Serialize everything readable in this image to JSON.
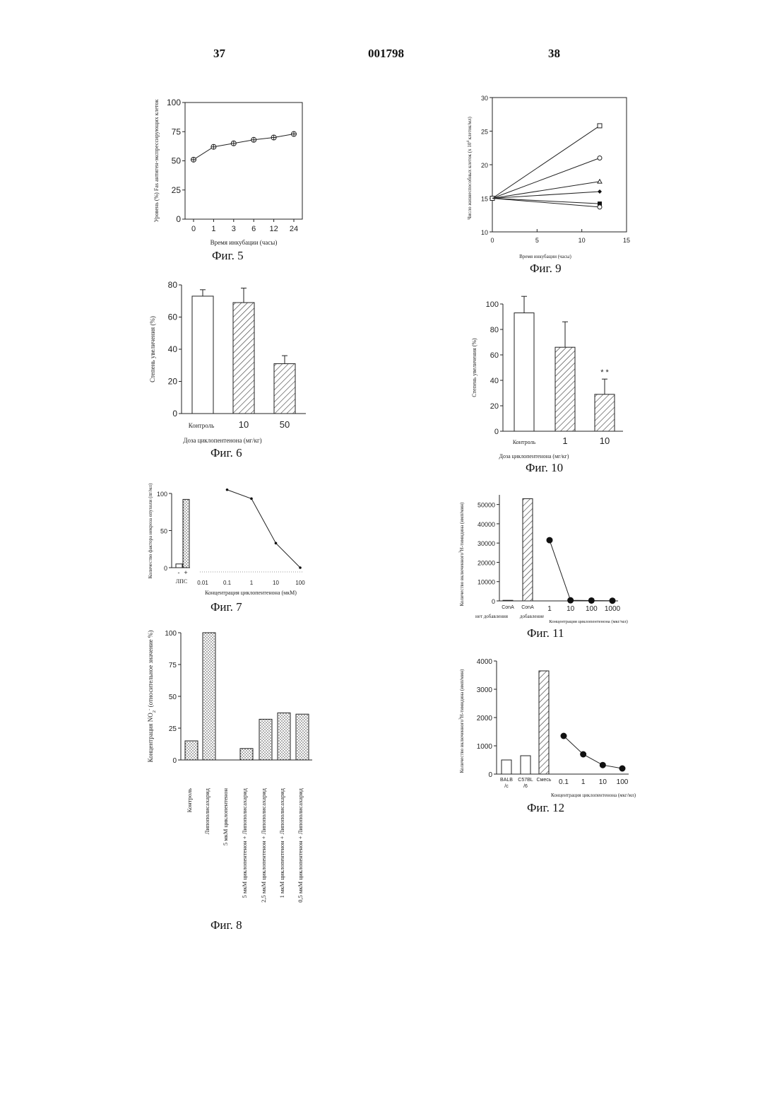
{
  "header": {
    "left_page": "37",
    "doc_number": "001798",
    "right_page": "38"
  },
  "chart_data": [
    {
      "id": "fig5",
      "caption": "Фиг. 5",
      "type": "line",
      "ylabel": "Уровень (%) Fas антиген-экспрессирующих клеток",
      "xlabel": "Время инкубации (часы)",
      "ylim": [
        0,
        100
      ],
      "yticks": [
        0,
        25,
        50,
        75,
        100
      ],
      "categories": [
        "0",
        "1",
        "3",
        "6",
        "12",
        "24"
      ],
      "values": [
        51,
        62,
        65,
        68,
        70,
        73
      ],
      "marker": "circle-cross"
    },
    {
      "id": "fig6",
      "caption": "Фиг. 6",
      "type": "bar",
      "ylabel": "Степень увеличения (%)",
      "xlabel": "Доза циклопентенона (мг/кг)",
      "ylim": [
        0,
        80
      ],
      "yticks": [
        0,
        20,
        40,
        60,
        80
      ],
      "categories": [
        "Контроль",
        "10",
        "50"
      ],
      "values": [
        73,
        69,
        31
      ],
      "errors": [
        4,
        9,
        5
      ],
      "fills": [
        "none",
        "hatch",
        "hatch"
      ]
    },
    {
      "id": "fig7",
      "caption": "Фиг. 7",
      "type": "line",
      "ylabel": "Количество фактора некроза опухоли (пг/мл)",
      "xlabel": "Концентрация циклопентенона (мкМ)",
      "ylim": [
        0,
        100
      ],
      "yticks": [
        0,
        50,
        100
      ],
      "bars": {
        "label": "ЛПС",
        "categories": [
          "-",
          "+"
        ],
        "values": [
          5,
          92
        ]
      },
      "x": [
        "0.01",
        "0.1",
        "1",
        "10",
        "100"
      ],
      "points": [
        {
          "x": 0.1,
          "y": 105
        },
        {
          "x": 1,
          "y": 93
        },
        {
          "x": 10,
          "y": 33
        },
        {
          "x": 100,
          "y": 0
        }
      ]
    },
    {
      "id": "fig8",
      "caption": "Фиг. 8",
      "type": "bar",
      "ylabel": "Концентрация NO",
      "ylabel_sub": "2",
      "ylabel_sup": "-",
      "ylabel_rest": " (относительное значение %)",
      "ylim": [
        0,
        100
      ],
      "yticks": [
        0,
        25,
        50,
        75,
        100
      ],
      "categories": [
        "Контроль",
        "Липополисахарид",
        "5 мкМ циклопентенон",
        "5 мкМ циклопентенон + Липополисахарид",
        "2,5 мкМ циклопентенон + Липополисахарид",
        "1 мкМ циклопентенон + Липополисахарид",
        "0,5 мкМ циклопентенон + Липополисахарид"
      ],
      "values": [
        15,
        100,
        0,
        9,
        32,
        37,
        36
      ]
    },
    {
      "id": "fig9",
      "caption": "Фиг. 9",
      "type": "line",
      "ylabel": "Число жизнеспособных клеток (x 10",
      "ylabel_sup": "4",
      "ylabel_rest": " клеток/мл)",
      "xlabel": "Время инкубации (часы)",
      "xlim": [
        0,
        15
      ],
      "ylim": [
        10,
        30
      ],
      "xticks": [
        0,
        5,
        10,
        15
      ],
      "yticks": [
        10,
        15,
        20,
        25,
        30
      ],
      "series": [
        {
          "marker": "open-square",
          "values": [
            [
              0,
              15
            ],
            [
              12,
              25.8
            ]
          ]
        },
        {
          "marker": "open-circle",
          "values": [
            [
              0,
              15
            ],
            [
              12,
              21
            ]
          ]
        },
        {
          "marker": "open-triangle",
          "values": [
            [
              0,
              15
            ],
            [
              12,
              17.5
            ]
          ]
        },
        {
          "marker": "filled-diamond",
          "values": [
            [
              0,
              15
            ],
            [
              12,
              16
            ]
          ]
        },
        {
          "marker": "filled-square",
          "values": [
            [
              0,
              15
            ],
            [
              12,
              14.2
            ]
          ]
        },
        {
          "marker": "open-circle",
          "values": [
            [
              0,
              15
            ],
            [
              12,
              13.7
            ]
          ]
        }
      ]
    },
    {
      "id": "fig10",
      "caption": "Фиг. 10",
      "type": "bar",
      "ylabel": "Степень увеличения (%)",
      "xlabel": "Доза циклопентенона (мг/кг)",
      "ylim": [
        0,
        100
      ],
      "yticks": [
        0,
        20,
        40,
        60,
        80,
        100
      ],
      "categories": [
        "Контроль",
        "1",
        "10"
      ],
      "values": [
        93,
        66,
        29
      ],
      "errors": [
        13,
        20,
        12
      ],
      "fills": [
        "none",
        "hatch",
        "hatch"
      ],
      "annotation": "* *"
    },
    {
      "id": "fig11",
      "caption": "Фиг. 11",
      "type": "bar",
      "ylabel": "Количество включенного",
      "ylabel_sup": "3",
      "ylabel_rest": "H-тимидина (имп/мин)",
      "xlabel": "Концентрация циклопентенона (мкг/мл)",
      "ylim": [
        0,
        50000
      ],
      "yticks": [
        0,
        10000,
        20000,
        30000,
        40000,
        50000
      ],
      "bars": {
        "categories": [
          "ConA",
          "ConA"
        ],
        "values": [
          300,
          53000
        ]
      },
      "bar_group_labels": [
        "нет добавления",
        "добавление"
      ],
      "x": [
        "1",
        "10",
        "100",
        "1000"
      ],
      "points": [
        {
          "x": 1,
          "y": 31500
        },
        {
          "x": 10,
          "y": 300
        },
        {
          "x": 100,
          "y": 200
        },
        {
          "x": 1000,
          "y": 100
        }
      ]
    },
    {
      "id": "fig12",
      "caption": "Фиг. 12",
      "type": "bar",
      "ylabel": "Количество включенного",
      "ylabel_sup": "3",
      "ylabel_rest": "H-тимидина (имп/мин)",
      "xlabel": "Концентрация циклопентенона (мкг/мл)",
      "ylim": [
        0,
        4000
      ],
      "yticks": [
        0,
        1000,
        2000,
        3000,
        4000
      ],
      "bars": {
        "categories": [
          "BALB /c",
          "C57BL /6",
          "Смесь"
        ],
        "values": [
          500,
          650,
          3650
        ]
      },
      "x": [
        "0.1",
        "1",
        "10",
        "100"
      ],
      "points": [
        {
          "x": 0.1,
          "y": 1350
        },
        {
          "x": 1,
          "y": 700
        },
        {
          "x": 10,
          "y": 320
        },
        {
          "x": 100,
          "y": 200
        }
      ]
    }
  ]
}
